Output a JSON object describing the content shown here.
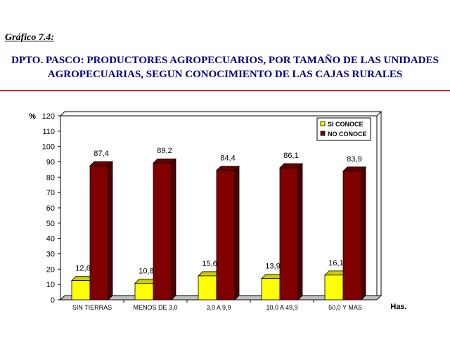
{
  "caption": "Gráfico 7.4:",
  "title": {
    "line1": "DPTO. PASCO: PRODUCTORES AGROPECUARIOS, POR TAMAÑO DE LAS UNIDADES",
    "line2": "AGROPECUARIAS, SEGUN CONOCIMIENTO DE LAS CAJAS RURALES"
  },
  "colors": {
    "title": "#000080",
    "rule": "#e02020",
    "si_conoce": "#ffff00",
    "no_conoce": "#800000"
  },
  "chart_data": {
    "type": "bar",
    "ylabel": "%",
    "xlabel": "Has.",
    "ylim": [
      0,
      120
    ],
    "yticks": [
      0,
      10,
      20,
      30,
      40,
      50,
      60,
      70,
      80,
      90,
      100,
      110,
      120
    ],
    "categories": [
      "SIN TIERRAS",
      "MENOS DE 3,0",
      "3,0 A 9,9",
      "10,0 A 49,9",
      "50,0 Y MAS"
    ],
    "series": [
      {
        "name": "SI CONOCE",
        "values": [
          12.6,
          10.8,
          15.6,
          13.9,
          16.1
        ],
        "labels": [
          "12,6",
          "10,8",
          "15,6",
          "13,9",
          "16,1"
        ]
      },
      {
        "name": "NO CONOCE",
        "values": [
          87.4,
          89.2,
          84.4,
          86.1,
          83.9
        ],
        "labels": [
          "87,4",
          "89,2",
          "84,4",
          "86,1",
          "83,9"
        ]
      }
    ],
    "legend_position": "top-right",
    "grid": false,
    "style": "3d"
  }
}
